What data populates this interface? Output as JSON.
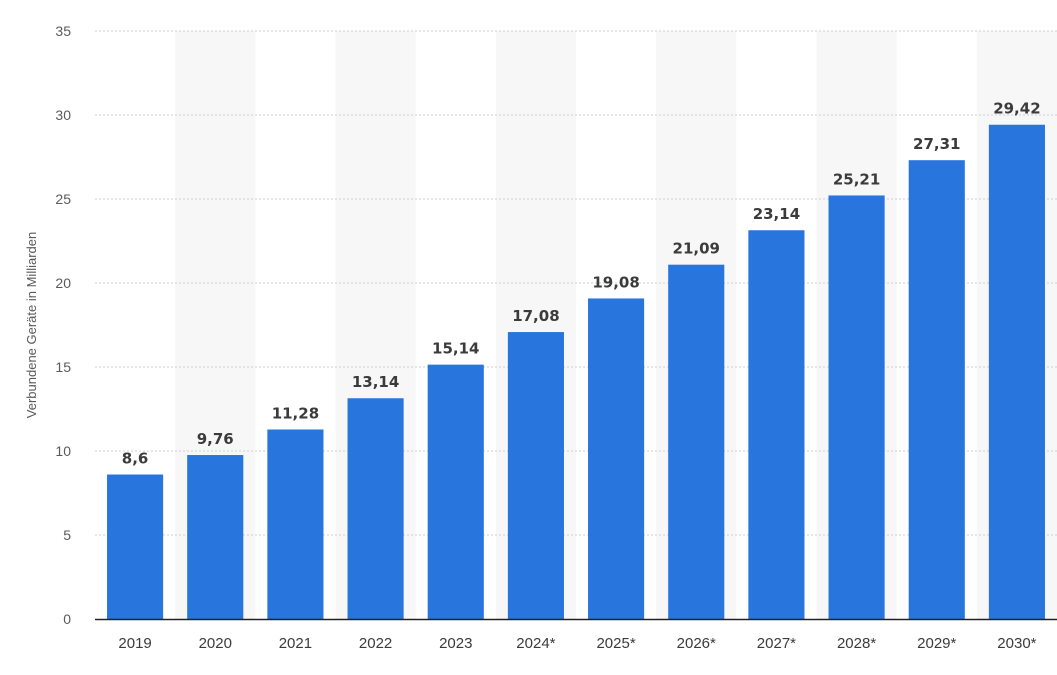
{
  "chart_data": {
    "type": "bar",
    "categories": [
      "2019",
      "2020",
      "2021",
      "2022",
      "2023",
      "2024*",
      "2025*",
      "2026*",
      "2027*",
      "2028*",
      "2029*",
      "2030*"
    ],
    "values": [
      8.6,
      9.76,
      11.28,
      13.14,
      15.14,
      17.08,
      19.08,
      21.09,
      23.14,
      25.21,
      27.31,
      29.42
    ],
    "value_labels": [
      "8,6",
      "9,76",
      "11,28",
      "13,14",
      "15,14",
      "17,08",
      "19,08",
      "21,09",
      "23,14",
      "25,21",
      "27,31",
      "29,42"
    ],
    "title": "",
    "xlabel": "",
    "ylabel": "Verbundene Geräte in Milliarden",
    "ylim": [
      0,
      35
    ],
    "yticks": [
      0,
      5,
      10,
      15,
      20,
      25,
      30,
      35
    ],
    "grid": "horizontal-dotted",
    "alternating_column_bands": true,
    "legend": "none",
    "colors": {
      "bar": "#2876dd",
      "band": "#f7f7f7",
      "grid": "#cfcfcf",
      "axis": "#222222"
    }
  }
}
